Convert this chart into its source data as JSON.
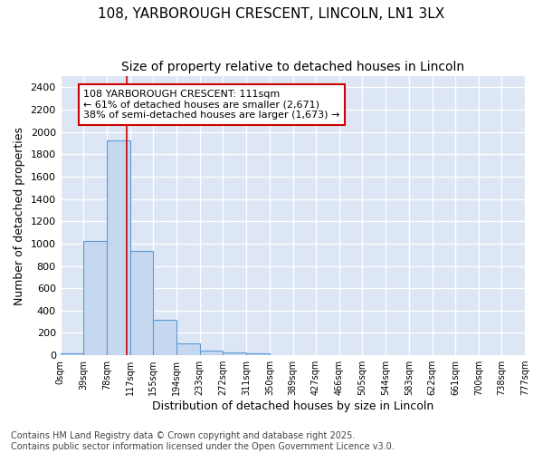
{
  "title1": "108, YARBOROUGH CRESCENT, LINCOLN, LN1 3LX",
  "title2": "Size of property relative to detached houses in Lincoln",
  "xlabel": "Distribution of detached houses by size in Lincoln",
  "ylabel": "Number of detached properties",
  "bin_edges": [
    0,
    39,
    78,
    117,
    155,
    194,
    233,
    272,
    311,
    350,
    389,
    427,
    466,
    505,
    544,
    583,
    622,
    661,
    700,
    738,
    777
  ],
  "bin_labels": [
    "0sqm",
    "39sqm",
    "78sqm",
    "117sqm",
    "155sqm",
    "194sqm",
    "233sqm",
    "272sqm",
    "311sqm",
    "350sqm",
    "389sqm",
    "427sqm",
    "466sqm",
    "505sqm",
    "544sqm",
    "583sqm",
    "622sqm",
    "661sqm",
    "700sqm",
    "738sqm",
    "777sqm"
  ],
  "bar_values": [
    20,
    1025,
    1925,
    930,
    320,
    105,
    45,
    25,
    20,
    0,
    0,
    0,
    0,
    0,
    0,
    0,
    0,
    0,
    0,
    0
  ],
  "bar_color": "#c5d8f0",
  "bar_edge_color": "#5b9bd5",
  "property_line_x": 111,
  "property_line_color": "#cc0000",
  "annotation_text": "108 YARBOROUGH CRESCENT: 111sqm\n← 61% of detached houses are smaller (2,671)\n38% of semi-detached houses are larger (1,673) →",
  "annotation_box_facecolor": "#ffffff",
  "annotation_border_color": "#cc0000",
  "ylim": [
    0,
    2500
  ],
  "yticks": [
    0,
    200,
    400,
    600,
    800,
    1000,
    1200,
    1400,
    1600,
    1800,
    2000,
    2200,
    2400
  ],
  "plot_bg_color": "#dce6f5",
  "fig_bg_color": "#ffffff",
  "grid_color": "#ffffff",
  "footnote1": "Contains HM Land Registry data © Crown copyright and database right 2025.",
  "footnote2": "Contains public sector information licensed under the Open Government Licence v3.0.",
  "title_fontsize": 11,
  "subtitle_fontsize": 10,
  "annotation_fontsize": 8,
  "footnote_fontsize": 7,
  "ylabel_fontsize": 9,
  "xlabel_fontsize": 9
}
